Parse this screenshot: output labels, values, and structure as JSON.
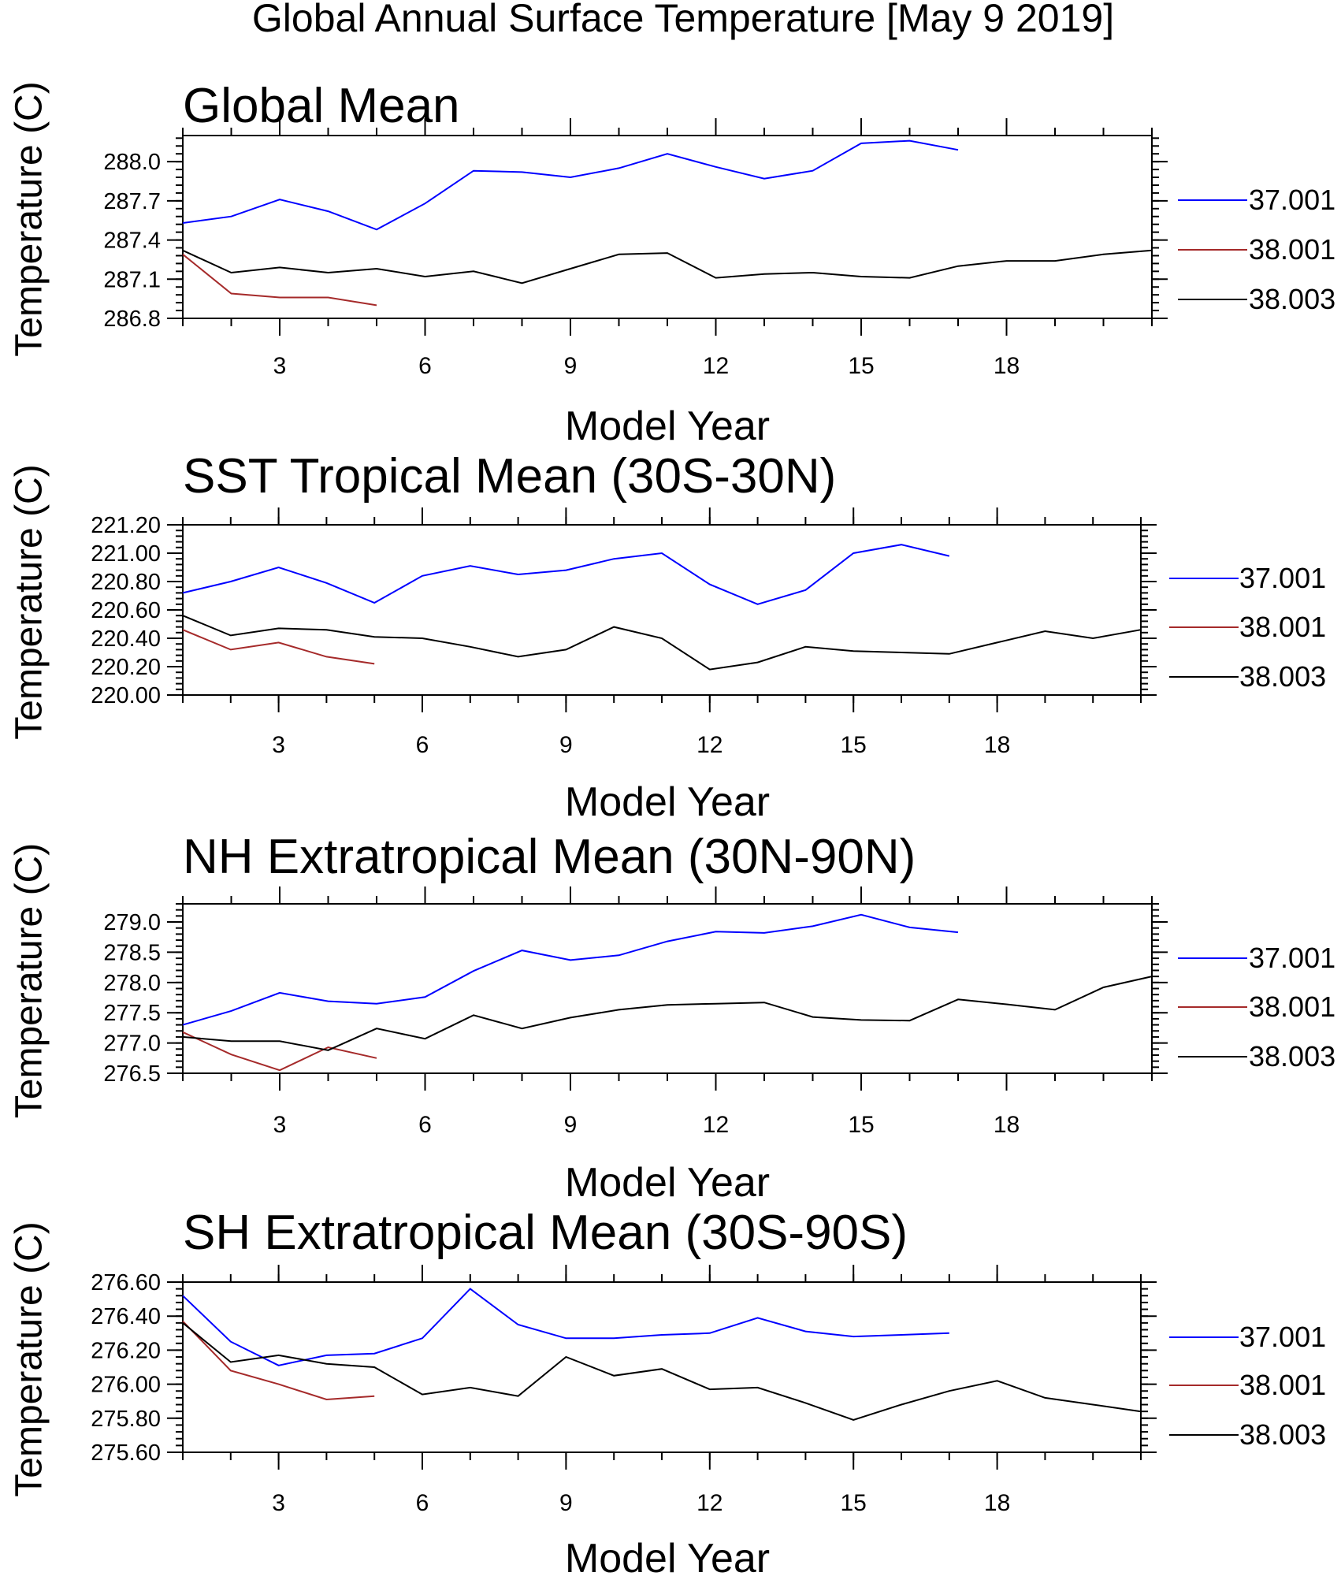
{
  "title": "Global Annual Surface Temperature [May  9 2019]",
  "colors": {
    "37.001": "#0000ff",
    "38.001": "#a52a2a",
    "38.003": "#000000"
  },
  "chart_data": [
    {
      "type": "line",
      "title": "Global Mean",
      "xlabel": "Model Year",
      "ylabel": "Temperature (C)",
      "xlim": [
        1,
        21
      ],
      "ylim": [
        286.8,
        288.2
      ],
      "xticks": [
        3,
        6,
        9,
        12,
        15,
        18
      ],
      "yticks": [
        286.8,
        287.1,
        287.4,
        287.7,
        288.0
      ],
      "ytick_labels": [
        "286.8",
        "287.1",
        "287.4",
        "287.7",
        "288.0"
      ],
      "series": [
        {
          "name": "37.001",
          "x": [
            1,
            2,
            3,
            4,
            5,
            6,
            7,
            8,
            9,
            10,
            11,
            12,
            13,
            14,
            15,
            16,
            17
          ],
          "values": [
            287.53,
            287.58,
            287.71,
            287.62,
            287.48,
            287.68,
            287.93,
            287.92,
            287.88,
            287.95,
            288.06,
            287.96,
            287.87,
            287.93,
            288.14,
            288.16,
            288.09
          ]
        },
        {
          "name": "38.001",
          "x": [
            1,
            2,
            3,
            4,
            5
          ],
          "values": [
            287.29,
            286.99,
            286.96,
            286.96,
            286.9
          ]
        },
        {
          "name": "38.003",
          "x": [
            1,
            2,
            3,
            4,
            5,
            6,
            7,
            8,
            9,
            10,
            11,
            12,
            13,
            14,
            15,
            16,
            17,
            18,
            19,
            20,
            21
          ],
          "values": [
            287.32,
            287.15,
            287.19,
            287.15,
            287.18,
            287.12,
            287.16,
            287.07,
            287.18,
            287.29,
            287.3,
            287.11,
            287.14,
            287.15,
            287.12,
            287.11,
            287.2,
            287.24,
            287.24,
            287.29,
            287.32
          ]
        }
      ]
    },
    {
      "type": "line",
      "title": "SST Tropical Mean (30S-30N)",
      "xlabel": "Model Year",
      "ylabel": "Temperature (C)",
      "xlim": [
        1,
        21
      ],
      "ylim": [
        220.0,
        221.2
      ],
      "xticks": [
        3,
        6,
        9,
        12,
        15,
        18
      ],
      "yticks": [
        220.0,
        220.2,
        220.4,
        220.6,
        220.8,
        221.0,
        221.2
      ],
      "ytick_labels": [
        "220.00",
        "220.20",
        "220.40",
        "220.60",
        "220.80",
        "221.00",
        "221.20"
      ],
      "series": [
        {
          "name": "37.001",
          "x": [
            1,
            2,
            3,
            4,
            5,
            6,
            7,
            8,
            9,
            10,
            11,
            12,
            13,
            14,
            15,
            16,
            17
          ],
          "values": [
            220.72,
            220.8,
            220.9,
            220.79,
            220.65,
            220.84,
            220.91,
            220.85,
            220.88,
            220.96,
            221.0,
            220.78,
            220.64,
            220.74,
            221.0,
            221.06,
            220.98
          ]
        },
        {
          "name": "38.001",
          "x": [
            1,
            2,
            3,
            4,
            5
          ],
          "values": [
            220.46,
            220.32,
            220.37,
            220.27,
            220.22
          ]
        },
        {
          "name": "38.003",
          "x": [
            1,
            2,
            3,
            4,
            5,
            6,
            7,
            8,
            9,
            10,
            11,
            12,
            13,
            14,
            15,
            16,
            17,
            18,
            19,
            20,
            21
          ],
          "values": [
            220.56,
            220.42,
            220.47,
            220.46,
            220.41,
            220.4,
            220.34,
            220.27,
            220.32,
            220.48,
            220.4,
            220.18,
            220.23,
            220.34,
            220.31,
            220.3,
            220.29,
            220.37,
            220.45,
            220.4,
            220.46
          ]
        }
      ]
    },
    {
      "type": "line",
      "title": "NH Extratropical Mean (30N-90N)",
      "xlabel": "Model Year",
      "ylabel": "Temperature (C)",
      "xlim": [
        1,
        21
      ],
      "ylim": [
        276.5,
        279.3
      ],
      "xticks": [
        3,
        6,
        9,
        12,
        15,
        18
      ],
      "yticks": [
        276.5,
        277.0,
        277.5,
        278.0,
        278.5,
        279.0
      ],
      "ytick_labels": [
        "276.5",
        "277.0",
        "277.5",
        "278.0",
        "278.5",
        "279.0"
      ],
      "series": [
        {
          "name": "37.001",
          "x": [
            1,
            2,
            3,
            4,
            5,
            6,
            7,
            8,
            9,
            10,
            11,
            12,
            13,
            14,
            15,
            16,
            17
          ],
          "values": [
            277.3,
            277.53,
            277.83,
            277.69,
            277.65,
            277.76,
            278.19,
            278.53,
            278.37,
            278.45,
            278.68,
            278.84,
            278.82,
            278.93,
            279.12,
            278.91,
            278.83
          ]
        },
        {
          "name": "38.001",
          "x": [
            1,
            2,
            3,
            4,
            5
          ],
          "values": [
            277.18,
            276.81,
            276.55,
            276.93,
            276.75
          ]
        },
        {
          "name": "38.003",
          "x": [
            1,
            2,
            3,
            4,
            5,
            6,
            7,
            8,
            9,
            10,
            11,
            12,
            13,
            14,
            15,
            16,
            17,
            18,
            19,
            20,
            21
          ],
          "values": [
            277.1,
            277.03,
            277.03,
            276.88,
            277.24,
            277.07,
            277.46,
            277.24,
            277.42,
            277.55,
            277.63,
            277.65,
            277.67,
            277.43,
            277.38,
            277.37,
            277.72,
            277.64,
            277.55,
            277.92,
            278.1
          ]
        }
      ]
    },
    {
      "type": "line",
      "title": "SH Extratropical Mean (30S-90S)",
      "xlabel": "Model Year",
      "ylabel": "Temperature (C)",
      "xlim": [
        1,
        21
      ],
      "ylim": [
        275.6,
        276.6
      ],
      "xticks": [
        3,
        6,
        9,
        12,
        15,
        18
      ],
      "yticks": [
        275.6,
        275.8,
        276.0,
        276.2,
        276.4,
        276.6
      ],
      "ytick_labels": [
        "275.60",
        "275.80",
        "276.00",
        "276.20",
        "276.40",
        "276.60"
      ],
      "series": [
        {
          "name": "37.001",
          "x": [
            1,
            2,
            3,
            4,
            5,
            6,
            7,
            8,
            9,
            10,
            11,
            12,
            13,
            14,
            15,
            16,
            17
          ],
          "values": [
            276.52,
            276.25,
            276.11,
            276.17,
            276.18,
            276.27,
            276.56,
            276.35,
            276.27,
            276.27,
            276.29,
            276.3,
            276.39,
            276.31,
            276.28,
            276.29,
            276.3
          ]
        },
        {
          "name": "38.001",
          "x": [
            1,
            2,
            3,
            4,
            5
          ],
          "values": [
            276.37,
            276.08,
            276.0,
            275.91,
            275.93
          ]
        },
        {
          "name": "38.003",
          "x": [
            1,
            2,
            3,
            4,
            5,
            6,
            7,
            8,
            9,
            10,
            11,
            12,
            13,
            14,
            15,
            16,
            17,
            18,
            19,
            20,
            21
          ],
          "values": [
            276.36,
            276.13,
            276.17,
            276.12,
            276.1,
            275.94,
            275.98,
            275.93,
            276.16,
            276.05,
            276.09,
            275.97,
            275.98,
            275.89,
            275.79,
            275.88,
            275.96,
            276.02,
            275.92,
            275.88,
            275.84
          ]
        }
      ]
    }
  ]
}
